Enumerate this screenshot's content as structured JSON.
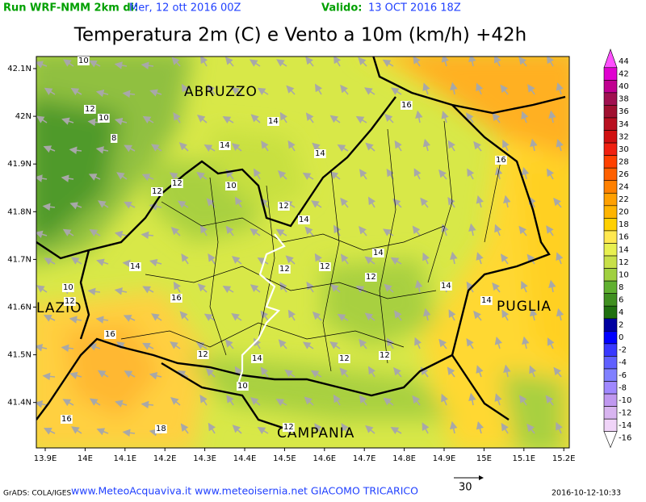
{
  "header": {
    "run": "Run WRF-NMM 2km di:",
    "run_date": "Mer, 12 ott 2016 00Z",
    "valid": "Valido:",
    "valid_date": "13 OCT 2016 18Z",
    "title": "Temperatura 2m (C) e Vento a 10m (km/h) +42h"
  },
  "map": {
    "lat_labels": [
      "42.1N",
      "42N",
      "41.9N",
      "41.8N",
      "41.7N",
      "41.6N",
      "41.5N",
      "41.4N"
    ],
    "lon_labels": [
      "13.9E",
      "14E",
      "14.1E",
      "14.2E",
      "14.3E",
      "14.4E",
      "14.5E",
      "14.6E",
      "14.7E",
      "14.8E",
      "14.9E",
      "15E",
      "15.1E",
      "15.2E"
    ],
    "regions": [
      "ABRUZZO",
      "LAZIO",
      "PUGLIA",
      "CAMPANIA"
    ],
    "contour_labels": [
      10,
      12,
      10,
      8,
      14,
      14,
      14,
      16,
      16,
      12,
      12,
      10,
      12,
      14,
      14,
      12,
      12,
      12,
      14,
      10,
      12,
      14,
      14,
      16,
      16,
      12,
      14,
      12,
      12,
      10,
      16,
      18,
      12
    ]
  },
  "colorbar": {
    "labels": [
      44,
      42,
      40,
      38,
      36,
      34,
      32,
      30,
      28,
      26,
      24,
      22,
      20,
      18,
      16,
      14,
      12,
      10,
      8,
      6,
      4,
      2,
      0,
      -2,
      -4,
      -6,
      -8,
      -10,
      -12,
      -14,
      -16
    ],
    "colors": [
      "#ff50ff",
      "#e000d0",
      "#c00090",
      "#a01050",
      "#a01030",
      "#b81020",
      "#d01010",
      "#f02010",
      "#ff4000",
      "#ff6000",
      "#ff8000",
      "#ffa000",
      "#ffb400",
      "#ffd000",
      "#ffe850",
      "#e8f050",
      "#c8e048",
      "#a0d040",
      "#60b030",
      "#409020",
      "#207010",
      "#0000a0",
      "#0000ff",
      "#3838ff",
      "#6060ff",
      "#8080ff",
      "#a088ff",
      "#c098f0",
      "#d8b4f0",
      "#f0d4f8",
      "#ffffff"
    ]
  },
  "footer": {
    "software": "GrADS: COLA/IGES",
    "credits": "www.MeteoAcquaviva.it www.meteoisernia.net GIACOMO TRICARICO",
    "wind_scale": "30",
    "timestamp": "2016-10-12-10:33"
  }
}
